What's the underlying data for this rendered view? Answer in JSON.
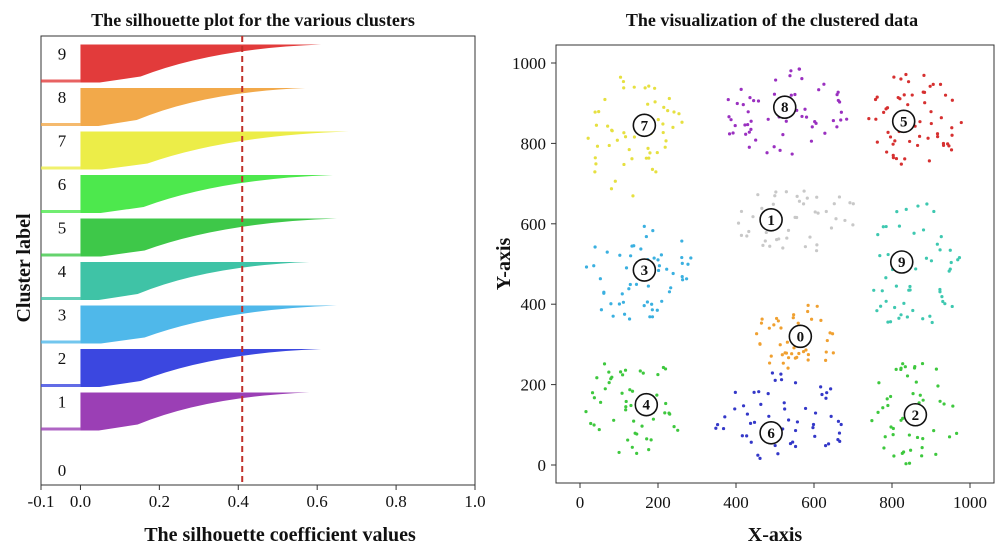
{
  "chart_data": [
    {
      "type": "bar",
      "title": "The silhouette plot for the various clusters",
      "xlabel": "The silhouette coefficient values",
      "ylabel": "Cluster label",
      "xlim": [
        -0.1,
        1.0
      ],
      "xticks": [
        "-0.1",
        "0.0",
        "0.2",
        "0.4",
        "0.6",
        "0.8",
        "1.0"
      ],
      "average_silhouette": 0.41,
      "average_line_color": "#c0302a",
      "clusters": [
        {
          "label": "0",
          "max": 0.0,
          "color": "#ffffff"
        },
        {
          "label": "1",
          "max": 0.58,
          "color": "#9b3fb5"
        },
        {
          "label": "2",
          "max": 0.61,
          "color": "#3b47e0"
        },
        {
          "label": "3",
          "max": 0.65,
          "color": "#4fb8ea"
        },
        {
          "label": "4",
          "max": 0.58,
          "color": "#3fc3a6"
        },
        {
          "label": "5",
          "max": 0.65,
          "color": "#3ec849"
        },
        {
          "label": "6",
          "max": 0.64,
          "color": "#4de84d"
        },
        {
          "label": "7",
          "max": 0.68,
          "color": "#eced48"
        },
        {
          "label": "8",
          "max": 0.57,
          "color": "#f2a94a"
        },
        {
          "label": "9",
          "max": 0.61,
          "color": "#e23b3b"
        }
      ]
    },
    {
      "type": "scatter",
      "title": "The visualization of the clustered data",
      "xlabel": "X-axis",
      "ylabel": "Y-axis",
      "xlim": [
        0,
        1000
      ],
      "ylim": [
        0,
        1000
      ],
      "xticks": [
        "0",
        "200",
        "400",
        "600",
        "800",
        "1000"
      ],
      "yticks": [
        "0",
        "200",
        "400",
        "600",
        "800",
        "1000"
      ],
      "clusters": [
        {
          "label": "0",
          "color": "#f0a030",
          "cx": 560,
          "cy": 320,
          "rx": 110,
          "ry": 90,
          "n": 45,
          "marker": {
            "x": 565,
            "y": 320
          }
        },
        {
          "label": "1",
          "color": "#c8c8c8",
          "cx": 560,
          "cy": 610,
          "rx": 170,
          "ry": 80,
          "n": 45,
          "marker": {
            "x": 490,
            "y": 610
          }
        },
        {
          "label": "2",
          "color": "#3ec83e",
          "cx": 860,
          "cy": 130,
          "rx": 120,
          "ry": 130,
          "n": 50,
          "marker": {
            "x": 860,
            "y": 125
          }
        },
        {
          "label": "3",
          "color": "#3ab0e0",
          "cx": 150,
          "cy": 480,
          "rx": 140,
          "ry": 130,
          "n": 55,
          "marker": {
            "x": 165,
            "y": 485
          }
        },
        {
          "label": "4",
          "color": "#3ec83e",
          "cx": 140,
          "cy": 150,
          "rx": 130,
          "ry": 130,
          "n": 55,
          "marker": {
            "x": 170,
            "y": 150
          }
        },
        {
          "label": "5",
          "color": "#d63030",
          "cx": 860,
          "cy": 860,
          "rx": 120,
          "ry": 120,
          "n": 60,
          "marker": {
            "x": 830,
            "y": 855
          }
        },
        {
          "label": "6",
          "color": "#3438c8",
          "cx": 520,
          "cy": 120,
          "rx": 180,
          "ry": 120,
          "n": 55,
          "marker": {
            "x": 490,
            "y": 80
          }
        },
        {
          "label": "7",
          "color": "#e6e040",
          "cx": 140,
          "cy": 820,
          "rx": 130,
          "ry": 160,
          "n": 55,
          "marker": {
            "x": 165,
            "y": 845
          }
        },
        {
          "label": "8",
          "color": "#9a30c0",
          "cx": 520,
          "cy": 880,
          "rx": 170,
          "ry": 110,
          "n": 60,
          "marker": {
            "x": 525,
            "y": 890
          }
        },
        {
          "label": "9",
          "color": "#3ec8b0",
          "cx": 860,
          "cy": 480,
          "rx": 120,
          "ry": 180,
          "n": 55,
          "marker": {
            "x": 825,
            "y": 505
          }
        }
      ]
    }
  ]
}
